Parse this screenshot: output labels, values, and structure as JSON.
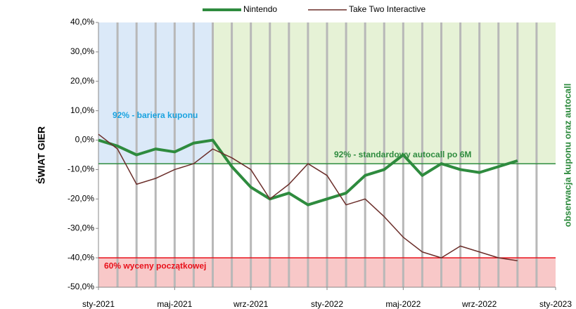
{
  "chart_data": {
    "type": "line",
    "y_axis_title": "ŚWIAT GIER",
    "y2_axis_title": "obserwacja kuponu oraz autocall",
    "coupon_label": "92% - bariera kuponu",
    "x": [
      "2021-01",
      "2021-02",
      "2021-03",
      "2021-04",
      "2021-05",
      "2021-06",
      "2021-07",
      "2021-08",
      "2021-09",
      "2021-10",
      "2021-11",
      "2021-12",
      "2022-01",
      "2022-02",
      "2022-03",
      "2022-04",
      "2022-05",
      "2022-06",
      "2022-07",
      "2022-08",
      "2022-09",
      "2022-10",
      "2022-11"
    ],
    "series": [
      {
        "name": "Nintendo",
        "color": "#2e8b3e",
        "values": [
          0,
          -2,
          -5,
          -3,
          -4,
          -1,
          0,
          -9,
          -16,
          -20,
          -18,
          -22,
          -20,
          -18,
          -12,
          -10,
          -5,
          -12,
          -8,
          -10,
          -11,
          -9,
          -7
        ]
      },
      {
        "name": "Take Two Interactive",
        "color": "#6b2e2a",
        "values": [
          2,
          -3,
          -15,
          -13,
          -10,
          -8,
          -3,
          -6,
          -10,
          -20,
          -15,
          -8,
          -12,
          -22,
          -20,
          -26,
          -33,
          -38,
          -40,
          -36,
          -38,
          -40,
          -41
        ]
      }
    ],
    "reference_lines": [
      {
        "value": -8,
        "label": "92% - standardowy autocall po 6M",
        "color": "#2e8b3e"
      },
      {
        "value": -40,
        "label": "60% wyceny początkowej",
        "color": "#e8101a"
      }
    ],
    "xlim": [
      "2021-01",
      "2023-01"
    ],
    "xticks": [
      {
        "value": "2021-01",
        "label": "sty-2021"
      },
      {
        "value": "2021-05",
        "label": "maj-2021"
      },
      {
        "value": "2021-09",
        "label": "wrz-2021"
      },
      {
        "value": "2022-01",
        "label": "sty-2022"
      },
      {
        "value": "2022-05",
        "label": "maj-2022"
      },
      {
        "value": "2022-09",
        "label": "wrz-2022"
      },
      {
        "value": "2023-01",
        "label": "sty-2023"
      }
    ],
    "ylim": [
      -50,
      40
    ],
    "yticks": [
      {
        "value": 40,
        "label": "40,0%"
      },
      {
        "value": 30,
        "label": "30,0%"
      },
      {
        "value": 20,
        "label": "20,0%"
      },
      {
        "value": 10,
        "label": "10,0%"
      },
      {
        "value": 0,
        "label": "0,0%"
      },
      {
        "value": -10,
        "label": "-10,0%"
      },
      {
        "value": -20,
        "label": "-20,0%"
      },
      {
        "value": -30,
        "label": "-30,0%"
      },
      {
        "value": -40,
        "label": "-40,0%"
      },
      {
        "value": -50,
        "label": "-50,0%"
      }
    ],
    "legend": "top"
  }
}
